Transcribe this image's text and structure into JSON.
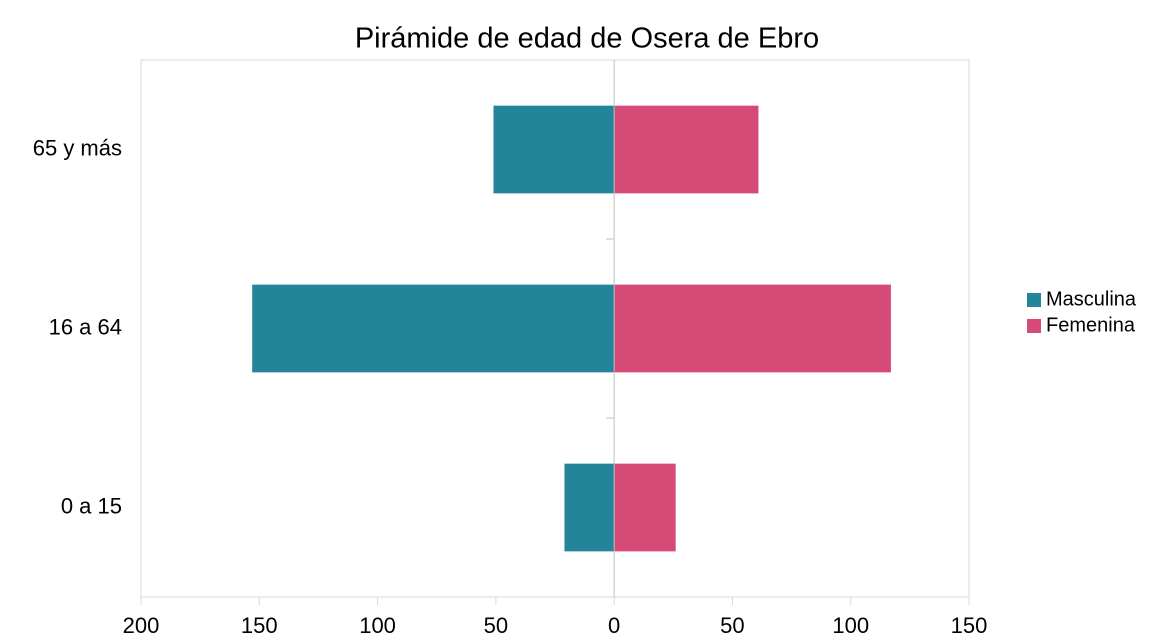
{
  "chart_data": {
    "type": "bar",
    "orientation": "horizontal",
    "stacked": true,
    "title": "Pirámide de edad de Osera de Ebro",
    "categories": [
      "65 y más",
      "16 a 64",
      "0 a 15"
    ],
    "series": [
      {
        "name": "Masculina",
        "color": "#23849a",
        "values": [
          -51,
          -153,
          -21
        ]
      },
      {
        "name": "Femenina",
        "color": "#d64a78",
        "values": [
          61,
          117,
          26
        ]
      }
    ],
    "xlim": [
      -200,
      150
    ],
    "xticks": [
      {
        "value": -200,
        "label": "200"
      },
      {
        "value": -150,
        "label": "150"
      },
      {
        "value": -100,
        "label": "100"
      },
      {
        "value": -50,
        "label": "50"
      },
      0,
      50,
      100,
      150
    ],
    "legend": "right"
  }
}
